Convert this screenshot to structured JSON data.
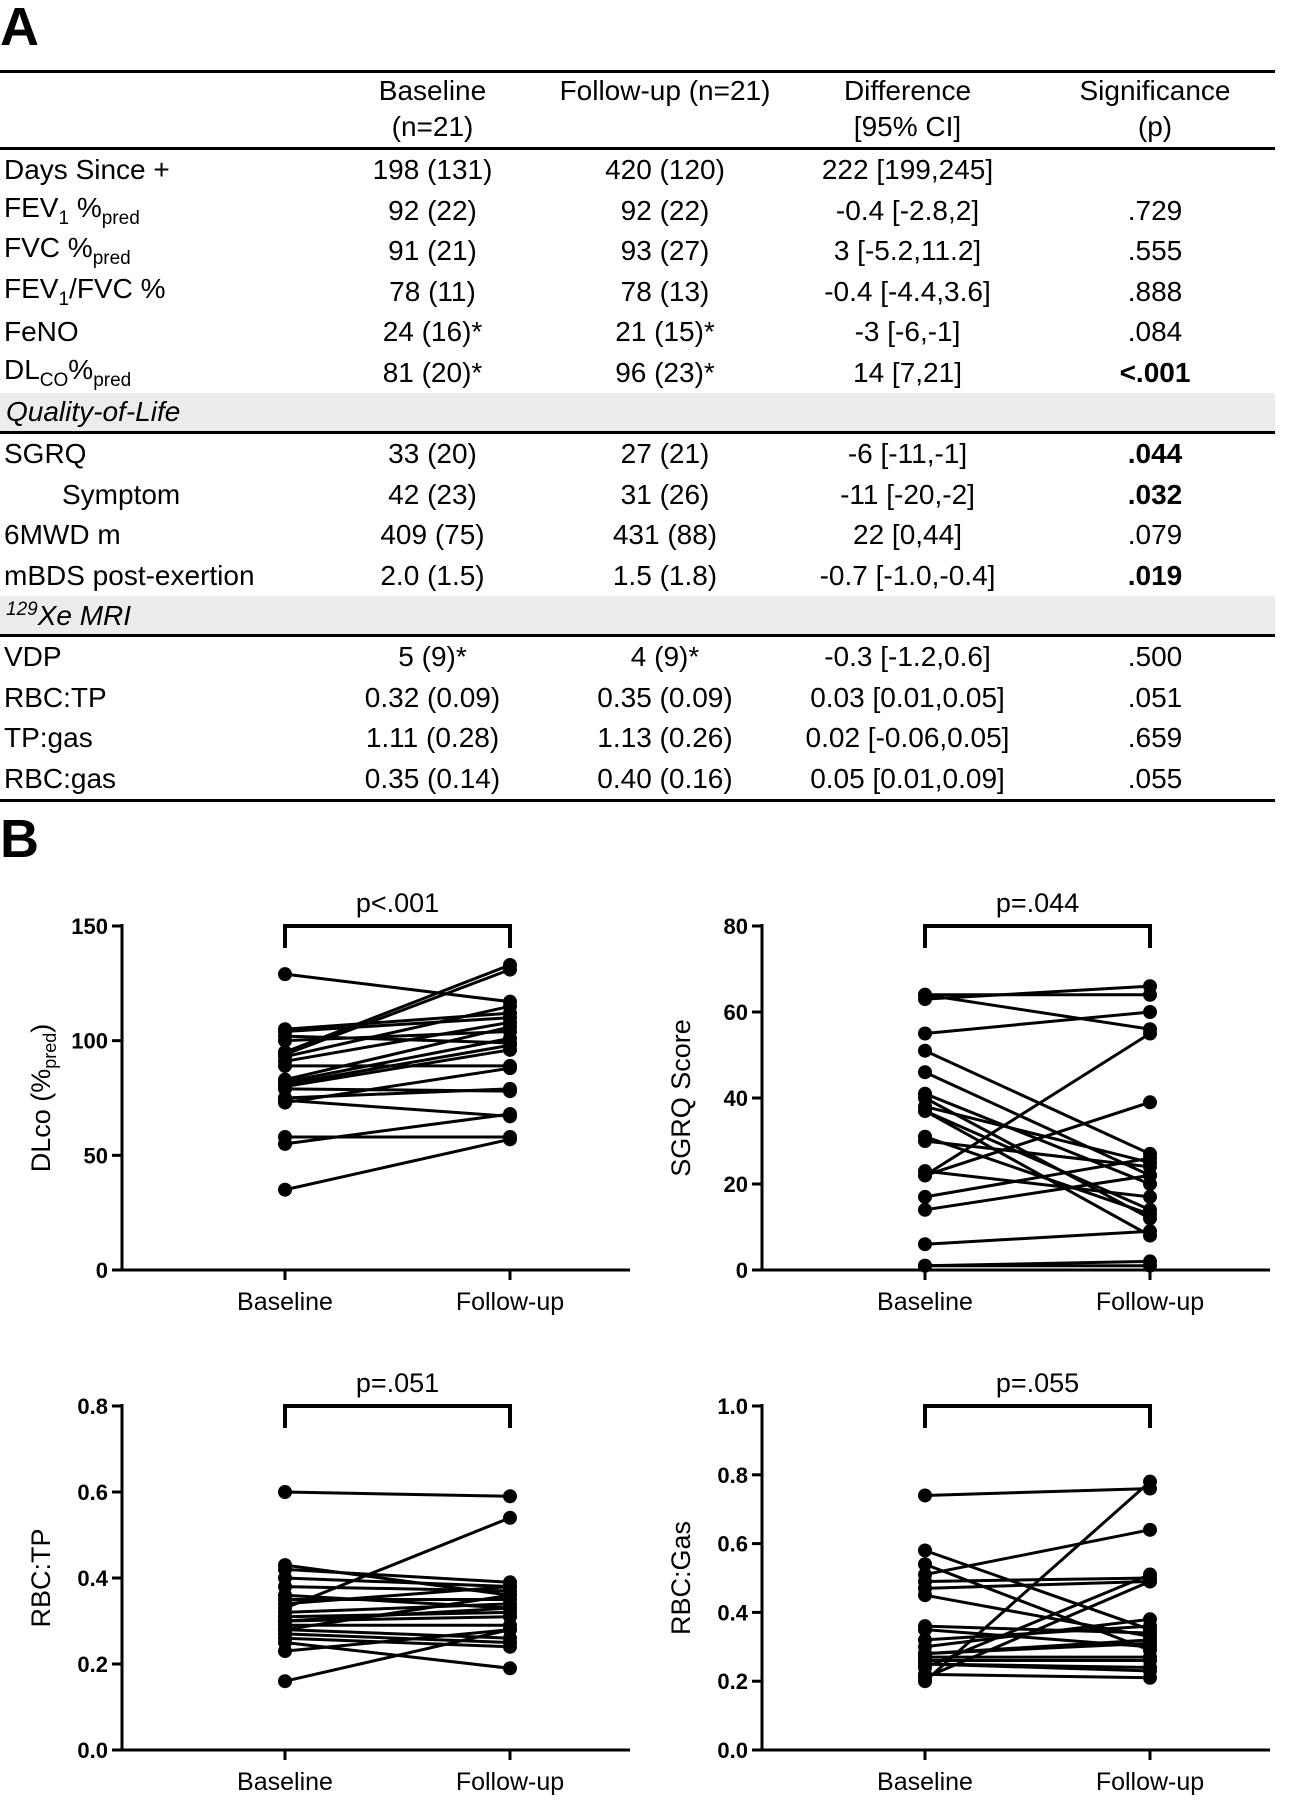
{
  "panel_a_letter": "A",
  "panel_b_letter": "B",
  "table": {
    "headers": [
      {
        "line1": "",
        "line2": ""
      },
      {
        "line1": "Baseline",
        "line2": "(n=21)"
      },
      {
        "line1": "Follow-up (n=21)",
        "line2": ""
      },
      {
        "line1": "Difference",
        "line2": "[95% CI]"
      },
      {
        "line1": "Significance",
        "line2": "(p)"
      }
    ],
    "rows": [
      {
        "type": "data",
        "label_parts": [
          {
            "t": "Days Since +"
          }
        ],
        "baseline": "198 (131)",
        "followup": "420 (120)",
        "difference": "222 [199,245]",
        "p": "",
        "bold": false
      },
      {
        "type": "data",
        "label_parts": [
          {
            "t": "FEV"
          },
          {
            "t": "1",
            "sub": true
          },
          {
            "t": " %"
          },
          {
            "t": "pred",
            "sub": true
          }
        ],
        "baseline": "92 (22)",
        "followup": "92 (22)",
        "difference": "-0.4 [-2.8,2]",
        "p": ".729",
        "bold": false
      },
      {
        "type": "data",
        "label_parts": [
          {
            "t": "FVC %"
          },
          {
            "t": "pred",
            "sub": true
          }
        ],
        "baseline": "91 (21)",
        "followup": "93 (27)",
        "difference": "3 [-5.2,11.2]",
        "p": ".555",
        "bold": false
      },
      {
        "type": "data",
        "label_parts": [
          {
            "t": "FEV"
          },
          {
            "t": "1",
            "sub": true
          },
          {
            "t": "/FVC %"
          }
        ],
        "baseline": "78 (11)",
        "followup": "78 (13)",
        "difference": "-0.4 [-4.4,3.6]",
        "p": ".888",
        "bold": false
      },
      {
        "type": "data",
        "label_parts": [
          {
            "t": "FeNO"
          }
        ],
        "baseline": "24 (16)*",
        "followup": "21 (15)*",
        "difference": "-3 [-6,-1]",
        "p": ".084",
        "bold": false
      },
      {
        "type": "data",
        "label_parts": [
          {
            "t": "DL"
          },
          {
            "t": "CO",
            "sub": true
          },
          {
            "t": "%"
          },
          {
            "t": "pred",
            "sub": true
          }
        ],
        "baseline": "81 (20)*",
        "followup": "96 (23)*",
        "difference": "14 [7,21]",
        "p": "<.001",
        "bold": true
      },
      {
        "type": "section",
        "label_parts": [
          {
            "t": "Quality-of-Life"
          }
        ]
      },
      {
        "type": "data",
        "label_parts": [
          {
            "t": "SGRQ"
          }
        ],
        "baseline": "33 (20)",
        "followup": "27 (21)",
        "difference": "-6 [-11,-1]",
        "p": ".044",
        "bold": true
      },
      {
        "type": "data",
        "indent": true,
        "label_parts": [
          {
            "t": "Symptom"
          }
        ],
        "baseline": "42 (23)",
        "followup": "31 (26)",
        "difference": "-11 [-20,-2]",
        "p": ".032",
        "bold": true
      },
      {
        "type": "data",
        "label_parts": [
          {
            "t": "6MWD m"
          }
        ],
        "baseline": "409 (75)",
        "followup": "431 (88)",
        "difference": "22 [0,44]",
        "p": ".079",
        "bold": false
      },
      {
        "type": "data",
        "label_parts": [
          {
            "t": "mBDS post-exertion"
          }
        ],
        "baseline": "2.0 (1.5)",
        "followup": "1.5 (1.8)",
        "difference": "-0.7 [-1.0,-0.4]",
        "p": ".019",
        "bold": true
      },
      {
        "type": "section",
        "label_parts": [
          {
            "t": "129",
            "sup": true
          },
          {
            "t": "Xe MRI"
          }
        ]
      },
      {
        "type": "data",
        "label_parts": [
          {
            "t": "VDP"
          }
        ],
        "baseline": "5 (9)*",
        "followup": "4 (9)*",
        "difference": "-0.3 [-1.2,0.6]",
        "p": ".500",
        "bold": false
      },
      {
        "type": "data",
        "label_parts": [
          {
            "t": "RBC:TP"
          }
        ],
        "baseline": "0.32 (0.09)",
        "followup": "0.35 (0.09)",
        "difference": "0.03 [0.01,0.05]",
        "p": ".051",
        "bold": false
      },
      {
        "type": "data",
        "label_parts": [
          {
            "t": "TP:gas"
          }
        ],
        "baseline": "1.11 (0.28)",
        "followup": "1.13 (0.26)",
        "difference": "0.02 [-0.06,0.05]",
        "p": ".659",
        "bold": false
      },
      {
        "type": "data",
        "label_parts": [
          {
            "t": "RBC:gas"
          }
        ],
        "baseline": "0.35 (0.14)",
        "followup": "0.40 (0.16)",
        "difference": "0.05 [0.01,0.09]",
        "p": ".055",
        "bold": false
      }
    ]
  },
  "chart_data": [
    {
      "type": "scatter",
      "subtype": "paired",
      "categories": [
        "Baseline",
        "Follow-up"
      ],
      "ylabel_parts": [
        {
          "t": "DLco (%"
        },
        {
          "t": "pred",
          "sub": true
        },
        {
          "t": ")"
        }
      ],
      "ylim": [
        0,
        150
      ],
      "yticks": [
        "0",
        "50",
        "100",
        "150"
      ],
      "significance": "p<.001",
      "pairs": [
        [
          129,
          117
        ],
        [
          105,
          112
        ],
        [
          104,
          110
        ],
        [
          102,
          99
        ],
        [
          100,
          104
        ],
        [
          95,
          133
        ],
        [
          94,
          131
        ],
        [
          93,
          115
        ],
        [
          91,
          108
        ],
        [
          89,
          89
        ],
        [
          83,
          106
        ],
        [
          82,
          101
        ],
        [
          81,
          98
        ],
        [
          80,
          96
        ],
        [
          79,
          78
        ],
        [
          75,
          79
        ],
        [
          74,
          67
        ],
        [
          73,
          88
        ],
        [
          58,
          58
        ],
        [
          55,
          68
        ],
        [
          35,
          57
        ]
      ]
    },
    {
      "type": "scatter",
      "subtype": "paired",
      "categories": [
        "Baseline",
        "Follow-up"
      ],
      "ylabel_parts": [
        {
          "t": "SGRQ  Score"
        }
      ],
      "ylim": [
        0,
        80
      ],
      "yticks": [
        "0",
        "20",
        "40",
        "60",
        "80"
      ],
      "significance": "p=.044",
      "pairs": [
        [
          64,
          56
        ],
        [
          64,
          64
        ],
        [
          63,
          66
        ],
        [
          55,
          60
        ],
        [
          51,
          27
        ],
        [
          46,
          22
        ],
        [
          41,
          20
        ],
        [
          40,
          12
        ],
        [
          38,
          25
        ],
        [
          37,
          14
        ],
        [
          37,
          8
        ],
        [
          31,
          13
        ],
        [
          30,
          24
        ],
        [
          23,
          17
        ],
        [
          22,
          39
        ],
        [
          22,
          55
        ],
        [
          17,
          26
        ],
        [
          14,
          22
        ],
        [
          6,
          9
        ],
        [
          1,
          1
        ],
        [
          1,
          2
        ]
      ]
    },
    {
      "type": "scatter",
      "subtype": "paired",
      "categories": [
        "Baseline",
        "Follow-up"
      ],
      "ylabel_parts": [
        {
          "t": "RBC:TP"
        }
      ],
      "ylim": [
        0,
        0.8
      ],
      "yticks": [
        "0.0",
        "0.2",
        "0.4",
        "0.6",
        "0.8"
      ],
      "significance": "p=.051",
      "pairs": [
        [
          0.6,
          0.59
        ],
        [
          0.43,
          0.36
        ],
        [
          0.42,
          0.39
        ],
        [
          0.4,
          0.38
        ],
        [
          0.38,
          0.37
        ],
        [
          0.36,
          0.33
        ],
        [
          0.35,
          0.35
        ],
        [
          0.34,
          0.38
        ],
        [
          0.33,
          0.54
        ],
        [
          0.32,
          0.34
        ],
        [
          0.31,
          0.32
        ],
        [
          0.3,
          0.31
        ],
        [
          0.3,
          0.33
        ],
        [
          0.29,
          0.29
        ],
        [
          0.28,
          0.26
        ],
        [
          0.28,
          0.36
        ],
        [
          0.27,
          0.25
        ],
        [
          0.26,
          0.24
        ],
        [
          0.25,
          0.19
        ],
        [
          0.23,
          0.28
        ],
        [
          0.16,
          0.28
        ]
      ]
    },
    {
      "type": "scatter",
      "subtype": "paired",
      "categories": [
        "Baseline",
        "Follow-up"
      ],
      "ylabel_parts": [
        {
          "t": "RBC:Gas"
        }
      ],
      "ylim": [
        0,
        1.0
      ],
      "yticks": [
        "0.0",
        "0.2",
        "0.4",
        "0.6",
        "0.8",
        "1.0"
      ],
      "significance": "p=.055",
      "pairs": [
        [
          0.74,
          0.76
        ],
        [
          0.58,
          0.35
        ],
        [
          0.54,
          0.29
        ],
        [
          0.51,
          0.64
        ],
        [
          0.49,
          0.5
        ],
        [
          0.47,
          0.49
        ],
        [
          0.45,
          0.33
        ],
        [
          0.36,
          0.34
        ],
        [
          0.35,
          0.3
        ],
        [
          0.32,
          0.36
        ],
        [
          0.3,
          0.38
        ],
        [
          0.28,
          0.31
        ],
        [
          0.28,
          0.32
        ],
        [
          0.27,
          0.27
        ],
        [
          0.26,
          0.26
        ],
        [
          0.25,
          0.24
        ],
        [
          0.25,
          0.23
        ],
        [
          0.24,
          0.51
        ],
        [
          0.22,
          0.21
        ],
        [
          0.2,
          0.78
        ],
        [
          0.21,
          0.49
        ]
      ]
    }
  ]
}
